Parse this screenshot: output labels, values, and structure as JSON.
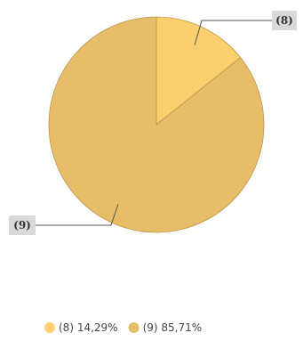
{
  "chart_data": {
    "type": "pie",
    "title": "",
    "slices": [
      {
        "label": "(8)",
        "value": 14.29,
        "legend": "(8) 14,29%",
        "color": "#fbcf6e"
      },
      {
        "label": "(9)",
        "value": 85.71,
        "legend": "(9) 85,71%",
        "color": "#e8bd68"
      }
    ],
    "legend_position": "bottom"
  },
  "colors": {
    "slice_stroke": "#b89650",
    "leader_line": "#555555",
    "callout_bg": "#d9d9d9"
  }
}
